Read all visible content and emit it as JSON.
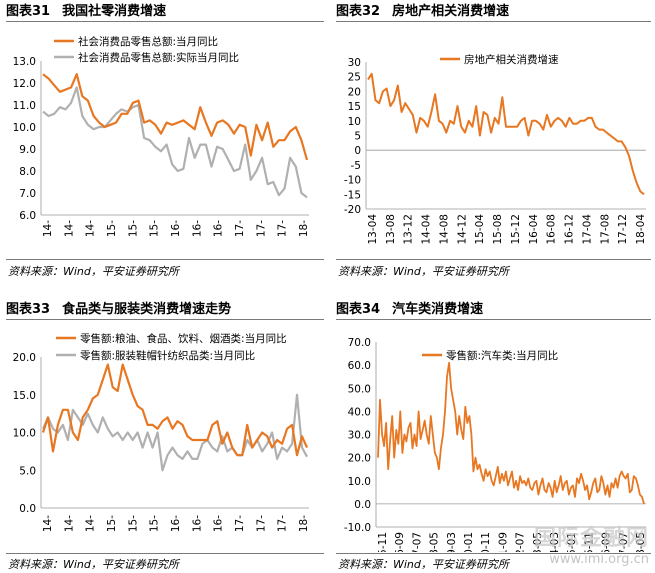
{
  "source_prefix": "资料来源：",
  "source_name": "Wind",
  "source_suffix": "，平安证券研究所",
  "watermark": {
    "main": "国际金融网",
    "url": "www.imi.org.cn"
  },
  "colors": {
    "orange": "#e87722",
    "gray": "#b0b0b0",
    "text": "#000000",
    "rule": "#7a7a7a"
  },
  "panels": [
    {
      "label": "图表31",
      "title": "我国社零消费增速"
    },
    {
      "label": "图表32",
      "title": "房地产相关消费增速"
    },
    {
      "label": "图表33",
      "title": "食品类与服装类消费增速走势"
    },
    {
      "label": "图表34",
      "title": "汽车类消费增速"
    }
  ],
  "chart_data": [
    {
      "type": "line",
      "ylim": [
        6.0,
        13.0
      ],
      "yticks": [
        "13.0",
        "12.0",
        "11.0",
        "10.0",
        "9.0",
        "8.0",
        "7.0",
        "6.0"
      ],
      "xticks": [
        "14-",
        "14-",
        "14-",
        "15-",
        "15-",
        "15-",
        "16-",
        "16-",
        "16-",
        "17-",
        "17-",
        "17-",
        "18-"
      ],
      "series": [
        {
          "name": "社会消费品零售总额:当月同比",
          "color": "orange",
          "values": [
            12.4,
            12.2,
            11.9,
            11.6,
            11.7,
            11.8,
            12.4,
            11.4,
            11.2,
            10.5,
            10.2,
            10.0,
            10.1,
            10.2,
            10.6,
            10.6,
            11.1,
            11.2,
            10.2,
            10.3,
            10.1,
            9.7,
            10.2,
            10.1,
            10.2,
            10.3,
            10.1,
            9.9,
            10.9,
            10.2,
            9.6,
            10.2,
            10.3,
            10.1,
            9.7,
            10.1,
            10.0,
            8.7,
            10.1,
            9.4,
            10.2,
            9.1,
            9.4,
            9.4,
            9.8,
            10.0,
            9.4,
            8.5
          ]
        },
        {
          "name": "社会消费品零售总额:实际当月同比",
          "color": "gray",
          "values": [
            10.7,
            10.5,
            10.6,
            10.9,
            10.8,
            11.1,
            11.8,
            10.5,
            10.1,
            9.9,
            10.0,
            10.0,
            10.3,
            10.6,
            10.8,
            10.7,
            10.9,
            11.0,
            9.5,
            9.4,
            9.1,
            8.9,
            9.2,
            8.3,
            8.0,
            8.1,
            9.5,
            8.6,
            9.2,
            9.2,
            8.2,
            9.1,
            9.0,
            8.5,
            8.0,
            8.1,
            9.2,
            7.6,
            8.0,
            8.6,
            7.4,
            7.5,
            6.9,
            7.2,
            8.6,
            8.2,
            7.0,
            6.8
          ]
        }
      ]
    },
    {
      "type": "line",
      "ylim": [
        -20,
        30
      ],
      "yticks": [
        "30",
        "25",
        "20",
        "15",
        "10",
        "5",
        "0",
        "-5",
        "-10",
        "-15",
        "-20"
      ],
      "xticks": [
        "13-04",
        "13-08",
        "13-12",
        "14-04",
        "14-08",
        "14-12",
        "15-04",
        "15-08",
        "15-12",
        "16-04",
        "16-08",
        "16-12",
        "17-04",
        "17-08",
        "17-12",
        "18-04"
      ],
      "series": [
        {
          "name": "房地产相关消费增速",
          "color": "orange",
          "values": [
            24.0,
            26.0,
            17.0,
            16.0,
            20.0,
            21.0,
            15.0,
            17.0,
            22.0,
            13.0,
            16.0,
            14.0,
            12.0,
            6.0,
            11.0,
            10.0,
            8.0,
            13.0,
            19.0,
            10.0,
            9.0,
            6.0,
            10.0,
            9.0,
            15.0,
            8.0,
            6.0,
            10.0,
            8.0,
            15.0,
            5.0,
            13.0,
            12.0,
            6.0,
            11.0,
            9.0,
            18.0,
            8.0,
            8.0,
            8.0,
            8.0,
            10.0,
            11.0,
            5.0,
            10.0,
            10.0,
            9.0,
            7.0,
            12.0,
            8.0,
            10.0,
            11.0,
            10.0,
            8.0,
            11.0,
            9.0,
            9.0,
            10.0,
            10.0,
            11.0,
            11.0,
            8.0,
            7.0,
            7.0,
            6.0,
            5.0,
            4.0,
            3.0,
            3.0,
            1.0,
            -2.0,
            -7.0,
            -11.0,
            -14.0,
            -15.0
          ]
        }
      ]
    },
    {
      "type": "line",
      "ylim": [
        0.0,
        20.0
      ],
      "yticks": [
        "20.0",
        "15.0",
        "10.0",
        "5.0",
        "0.0"
      ],
      "xticks": [
        "14-",
        "14-",
        "14-",
        "15-",
        "15-",
        "15-",
        "16-",
        "16-",
        "16-",
        "17-",
        "17-",
        "17-",
        "18-"
      ],
      "series": [
        {
          "name": "零售额:粮油、食品、饮料、烟酒类:当月同比",
          "color": "orange",
          "values": [
            10.0,
            12.0,
            7.5,
            11.0,
            13.0,
            13.0,
            10.0,
            9.0,
            12.0,
            13.0,
            14.5,
            15.0,
            17.0,
            19.0,
            16.0,
            15.5,
            19.0,
            17.0,
            15.0,
            13.5,
            13.0,
            11.0,
            11.0,
            10.5,
            11.5,
            12.0,
            10.5,
            11.5,
            11.0,
            9.5,
            9.0,
            9.0,
            9.0,
            9.0,
            11.0,
            11.5,
            8.5,
            10.0,
            8.0,
            7.0,
            7.0,
            11.0,
            8.0,
            9.0,
            10.0,
            9.5,
            8.0,
            9.0,
            8.5,
            10.5,
            11.0,
            7.0,
            9.5,
            8.0
          ]
        },
        {
          "name": "零售额:服装鞋帽针纺织品类:当月同比",
          "color": "gray",
          "values": [
            10.5,
            12.0,
            10.5,
            10.0,
            11.0,
            9.0,
            13.0,
            12.0,
            11.0,
            12.5,
            11.0,
            10.0,
            12.0,
            10.5,
            9.5,
            10.0,
            9.0,
            10.0,
            9.0,
            10.0,
            8.0,
            10.0,
            8.0,
            10.0,
            5.0,
            7.0,
            8.0,
            7.0,
            6.5,
            7.5,
            6.5,
            6.5,
            8.5,
            9.0,
            8.0,
            7.5,
            9.5,
            7.5,
            8.0,
            7.0,
            7.0,
            9.0,
            8.0,
            9.0,
            7.5,
            8.5,
            10.0,
            6.5,
            8.0,
            7.5,
            8.5,
            15.0,
            8.0,
            6.8
          ]
        }
      ]
    },
    {
      "type": "line",
      "ylim": [
        -10.0,
        70.0
      ],
      "yticks": [
        "70.0",
        "60.0",
        "50.0",
        "40.0",
        "30.0",
        "20.0",
        "10.0",
        "0.0",
        "-10.0"
      ],
      "xticks": [
        "05-11",
        "06-09",
        "07-07",
        "08-05",
        "09-03",
        "10-01",
        "10-11",
        "11-09",
        "12-07",
        "13-05",
        "14-03",
        "15-01",
        "15-11",
        "16-09",
        "17-07",
        "18-05"
      ],
      "series": [
        {
          "name": "零售额:汽车类:当月同比",
          "color": "orange",
          "values": [
            20,
            45,
            30,
            25,
            35,
            15,
            28,
            38,
            20,
            32,
            26,
            40,
            22,
            30,
            27,
            33,
            35,
            24,
            30,
            25,
            40,
            28,
            32,
            36,
            30,
            26,
            38,
            30,
            22,
            20,
            15,
            24,
            30,
            40,
            55,
            61,
            50,
            45,
            40,
            30,
            38,
            32,
            28,
            42,
            35,
            38,
            30,
            14,
            20,
            15,
            17,
            13,
            10,
            15,
            12,
            14,
            10,
            8,
            12,
            16,
            9,
            13,
            10,
            14,
            8,
            11,
            14,
            7,
            10,
            6,
            12,
            9,
            10,
            8,
            11,
            7,
            6,
            9,
            10,
            4,
            8,
            11,
            6,
            5,
            9,
            7,
            3,
            10,
            5,
            8,
            12,
            6,
            9,
            10,
            4,
            7,
            8,
            3,
            11,
            9,
            13,
            10,
            6,
            8,
            2,
            5,
            9,
            11,
            5,
            6,
            12,
            9,
            4,
            8,
            3,
            9,
            7,
            11,
            7,
            12,
            14,
            12,
            11,
            13,
            5,
            6,
            12,
            11,
            8,
            4,
            3,
            0
          ]
        }
      ]
    }
  ]
}
